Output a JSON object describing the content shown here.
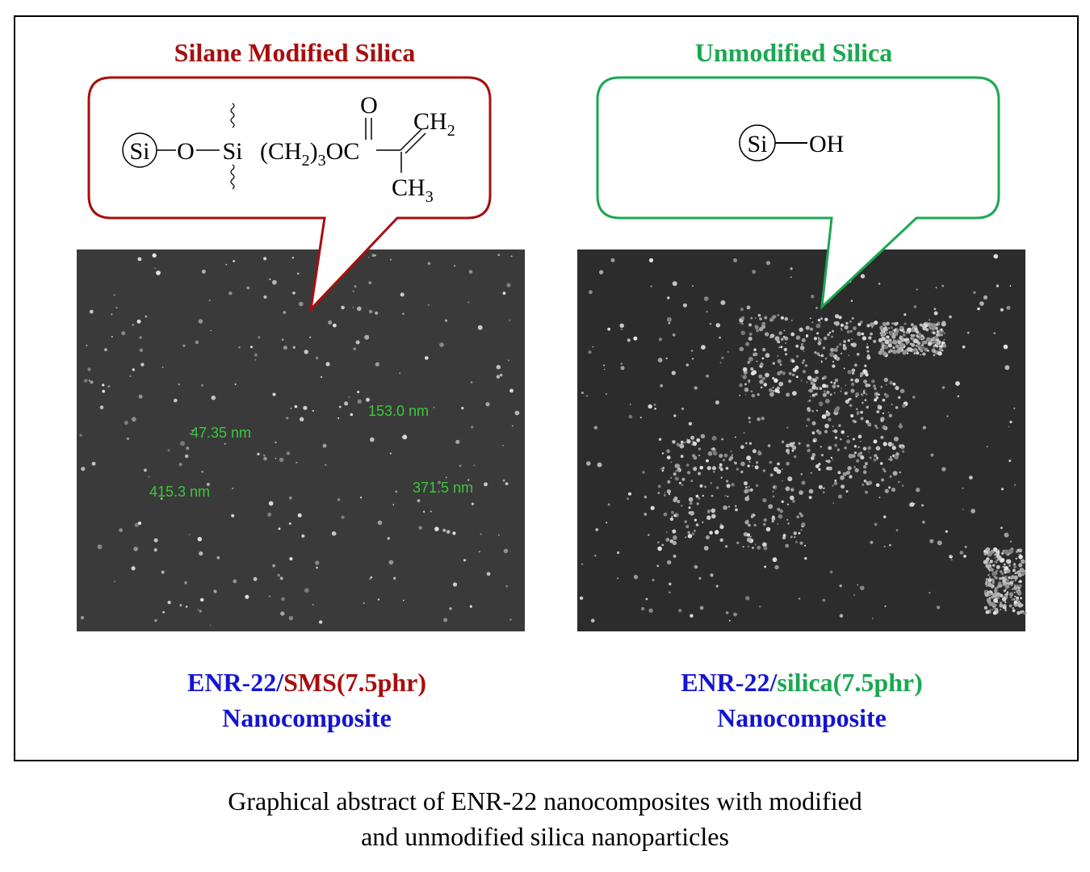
{
  "left": {
    "title": "Silane Modified Silica",
    "formula": {
      "ring": "Si",
      "o": "O",
      "si": "Si",
      "chain": [
        "(CH",
        "2",
        ")",
        "3",
        "OC"
      ],
      "carbonyl": "O",
      "top": [
        "CH",
        "2"
      ],
      "bottom": [
        "CH",
        "3"
      ]
    },
    "measurements": [
      "47.35 nm",
      "153.0 nm",
      "415.3 nm",
      "371.5 nm"
    ],
    "caption": [
      "ENR-22/",
      "SMS(7.5phr)",
      "Nanocomposite"
    ]
  },
  "right": {
    "title": "Unmodified Silica",
    "formula": {
      "ring": "Si",
      "group": "OH"
    },
    "caption": [
      "ENR-22/",
      "silica(7.5phr)",
      "Nanocomposite"
    ]
  },
  "figure_caption": [
    "Graphical abstract of ENR-22 nanocomposites with modified",
    "and unmodified silica nanoparticles"
  ]
}
